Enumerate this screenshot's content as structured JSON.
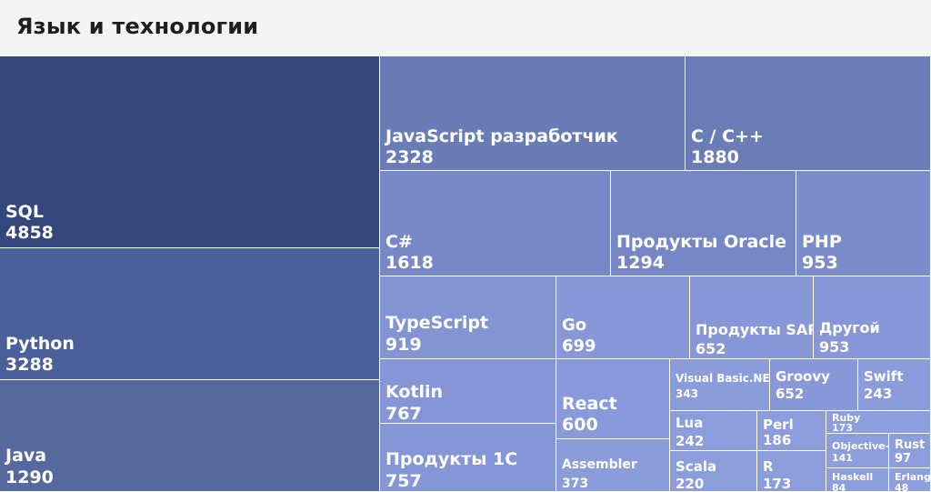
{
  "title": "Язык и технологии",
  "chart_data": {
    "type": "treemap",
    "title": "Язык и технологии",
    "items": [
      {
        "name": "SQL",
        "value": 4858,
        "color": "#34467a"
      },
      {
        "name": "Python",
        "value": 3288,
        "color": "#4b5f9a"
      },
      {
        "name": "Java",
        "value": 1290,
        "color": "#56699f"
      },
      {
        "name": "JavaScript разработчик",
        "value": 2328,
        "color": "#6a7cb6"
      },
      {
        "name": "C / C++",
        "value": 1880,
        "color": "#6b7db6"
      },
      {
        "name": "C#",
        "value": 1618,
        "color": "#7788c6"
      },
      {
        "name": "Продукты Oracle",
        "value": 1294,
        "color": "#7787c5"
      },
      {
        "name": "PHP",
        "value": 953,
        "color": "#7b8cc8"
      },
      {
        "name": "TypeScript",
        "value": 919,
        "color": "#8394d3"
      },
      {
        "name": "Go",
        "value": 699,
        "color": "#8797d7"
      },
      {
        "name": "Продукты SAP",
        "value": 652,
        "color": "#8797d7"
      },
      {
        "name": "Другой",
        "value": 953,
        "color": "#8797d7"
      },
      {
        "name": "Kotlin",
        "value": 767,
        "color": "#8595d6"
      },
      {
        "name": "Продукты 1С",
        "value": 757,
        "color": "#8596d6"
      },
      {
        "name": "React",
        "value": 600,
        "color": "#899ada"
      },
      {
        "name": "Assembler",
        "value": 373,
        "color": "#8b9cdb"
      },
      {
        "name": "Visual Basic.NET",
        "value": 343,
        "color": "#8b9cdb"
      },
      {
        "name": "Groovy",
        "value": 652,
        "color": "#8898d9"
      },
      {
        "name": "Swift",
        "value": 243,
        "color": "#8b9cdb"
      },
      {
        "name": "Lua",
        "value": 242,
        "color": "#8c9ddc"
      },
      {
        "name": "Perl",
        "value": 186,
        "color": "#8c9ddc"
      },
      {
        "name": "Ruby",
        "value": 173,
        "color": "#8d9edd"
      },
      {
        "name": "Objective-C",
        "value": 141,
        "color": "#8d9edd"
      },
      {
        "name": "Rust",
        "value": 97,
        "color": "#8d9edd"
      },
      {
        "name": "Scala",
        "value": 220,
        "color": "#8c9ddc"
      },
      {
        "name": "R",
        "value": 173,
        "color": "#8c9ddc"
      },
      {
        "name": "Haskell",
        "value": 84,
        "color": "#8d9edd"
      },
      {
        "name": "Erlang",
        "value": 48,
        "color": "#8d9edd"
      }
    ]
  }
}
